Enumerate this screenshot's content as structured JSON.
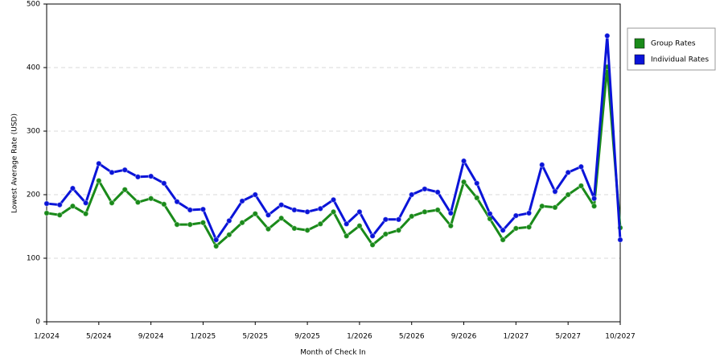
{
  "chart_data": {
    "type": "line",
    "x_label": "Month of Check In",
    "y_label": "Lowest Average Rate (USD)",
    "categories": [
      "1/2024",
      null,
      null,
      null,
      "5/2024",
      null,
      null,
      null,
      "9/2024",
      null,
      null,
      null,
      "1/2025",
      null,
      null,
      null,
      "5/2025",
      null,
      null,
      null,
      "9/2025",
      null,
      null,
      null,
      "1/2026",
      null,
      null,
      null,
      "5/2026",
      null,
      null,
      null,
      "9/2026",
      null,
      null,
      null,
      "1/2027",
      null,
      null,
      null,
      "5/2027",
      null,
      null,
      null,
      "10/2027"
    ],
    "series": [
      {
        "name": "Group Rates",
        "color": "#1a8a1a",
        "values": [
          171,
          168,
          182,
          170,
          222,
          187,
          208,
          188,
          194,
          185,
          153,
          153,
          156,
          119,
          137,
          156,
          170,
          146,
          163,
          147,
          144,
          154,
          173,
          135,
          151,
          121,
          138,
          144,
          166,
          173,
          176,
          151,
          220,
          195,
          162,
          129,
          147,
          149,
          182,
          180,
          200,
          214,
          182,
          401,
          148
        ]
      },
      {
        "name": "Individual Rates",
        "color": "#0a14d8",
        "values": [
          186,
          184,
          210,
          187,
          249,
          235,
          239,
          228,
          229,
          218,
          189,
          176,
          177,
          129,
          159,
          190,
          200,
          168,
          184,
          176,
          173,
          178,
          192,
          154,
          173,
          135,
          161,
          161,
          200,
          209,
          204,
          171,
          253,
          218,
          170,
          144,
          167,
          171,
          247,
          205,
          235,
          244,
          194,
          450,
          129
        ]
      }
    ],
    "ylim": [
      0,
      500
    ],
    "yticks": [
      0,
      100,
      200,
      300,
      400,
      500
    ],
    "grid": true,
    "legend": "right"
  }
}
